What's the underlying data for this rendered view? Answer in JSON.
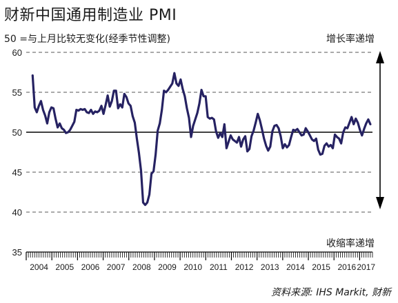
{
  "header": {
    "title": "财新中国通用制造业 PMI",
    "subtitle": "50 =与上月比较无变化(经季节性调整)",
    "up_label": "增长率递增",
    "down_label": "收缩率递增",
    "source": "资料来源: IHS Markit, 财新"
  },
  "colors": {
    "line": "#262262",
    "reference": "#000000",
    "grid": "#555555",
    "arrow": "#000000"
  },
  "chart_data": {
    "type": "line",
    "title": "财新中国通用制造业 PMI",
    "subtitle": "50 =与上月比较无变化(经季节性调整)",
    "xlabel": "",
    "ylabel": "",
    "ylim": [
      35,
      60
    ],
    "yticks": [
      35,
      40,
      45,
      50,
      55,
      60
    ],
    "reference_line": 50,
    "grid": "dashed horizontal",
    "x_start": "2004-04",
    "x_end": "2017-06",
    "year_labels": [
      "2004",
      "2005",
      "2006",
      "2007",
      "2008",
      "2009",
      "2010",
      "2011",
      "2012",
      "2013",
      "2014",
      "2015",
      "2016",
      "2017"
    ],
    "series": [
      {
        "name": "",
        "values": [
          57.1,
          53.1,
          52.5,
          53.3,
          53.9,
          52.8,
          52.1,
          51.1,
          52.5,
          53.1,
          53.0,
          51.7,
          50.6,
          51.1,
          50.5,
          50.3,
          49.9,
          50.0,
          50.3,
          50.8,
          51.3,
          52.8,
          52.7,
          52.9,
          52.8,
          52.9,
          52.5,
          52.4,
          52.8,
          52.3,
          52.6,
          52.5,
          52.7,
          53.3,
          52.3,
          53.4,
          54.6,
          53.2,
          53.9,
          55.2,
          55.2,
          53.0,
          53.5,
          53.1,
          54.8,
          54.4,
          53.6,
          53.3,
          52.0,
          51.2,
          49.2,
          47.4,
          45.2,
          41.2,
          40.9,
          41.2,
          42.2,
          44.8,
          45.1,
          47.2,
          50.2,
          51.1,
          52.8,
          55.2,
          55.0,
          55.3,
          55.7,
          56.1,
          57.4,
          56.1,
          55.8,
          56.6,
          55.4,
          54.5,
          53.0,
          51.8,
          49.4,
          50.8,
          51.6,
          52.4,
          53.6,
          55.3,
          54.5,
          54.5,
          51.9,
          51.7,
          51.8,
          51.6,
          50.1,
          49.3,
          49.9,
          49.4,
          51.0,
          48.0,
          48.8,
          49.6,
          49.1,
          48.9,
          48.7,
          49.4,
          48.2,
          49.1,
          49.5,
          47.6,
          47.9,
          49.5,
          50.2,
          51.2,
          52.3,
          51.5,
          50.4,
          49.2,
          48.3,
          47.7,
          48.2,
          50.1,
          50.8,
          50.9,
          50.5,
          49.5,
          48.0,
          48.5,
          48.1,
          48.4,
          49.4,
          50.3,
          50.2,
          50.4,
          50.0,
          49.6,
          49.7,
          50.5,
          50.1,
          49.6,
          49.1,
          48.9,
          49.2,
          47.8,
          47.2,
          47.3,
          48.3,
          48.6,
          48.2,
          48.4,
          48.0,
          49.7,
          49.4,
          49.2,
          48.6,
          50.0,
          50.6,
          50.5,
          51.2,
          51.9,
          51.0,
          51.7,
          51.2,
          50.3,
          49.6,
          50.4,
          51.1,
          51.6,
          51.0
        ]
      }
    ]
  }
}
